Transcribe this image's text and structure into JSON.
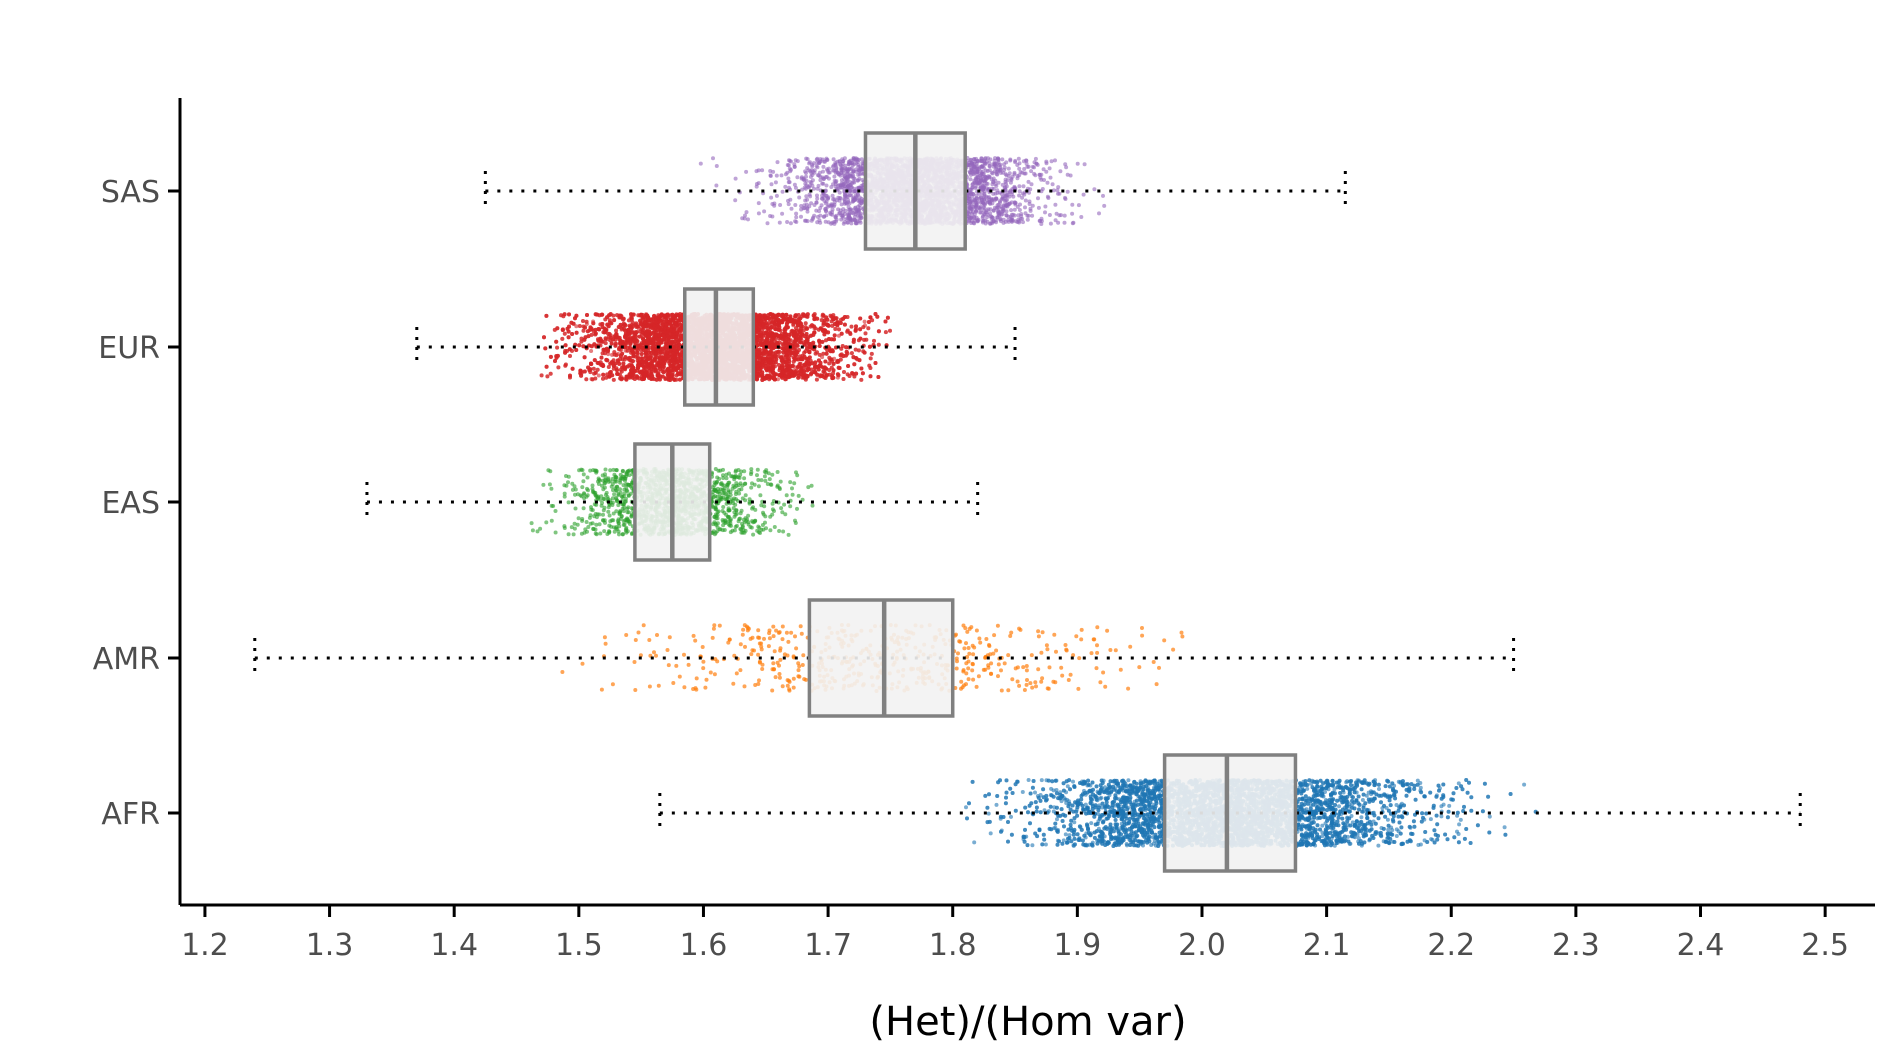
{
  "chart_data": {
    "type": "box",
    "orientation": "horizontal",
    "xlabel": "(Het)/(Hom var)",
    "ylabel": "",
    "xlim": [
      1.18,
      2.54
    ],
    "x_ticks": [
      1.2,
      1.3,
      1.4,
      1.5,
      1.6,
      1.7,
      1.8,
      1.9,
      2.0,
      2.1,
      2.2,
      2.3,
      2.4,
      2.5
    ],
    "x_tick_labels": [
      "1.2",
      "1.3",
      "1.4",
      "1.5",
      "1.6",
      "1.7",
      "1.8",
      "1.9",
      "2.0",
      "2.1",
      "2.2",
      "2.3",
      "2.4",
      "2.5"
    ],
    "categories": [
      "SAS",
      "EUR",
      "EAS",
      "AMR",
      "AFR"
    ],
    "grid": false,
    "legend": "none",
    "series": [
      {
        "category": "SAS",
        "color": "#9467bd",
        "whisker_low": 1.425,
        "q1": 1.73,
        "median": 1.77,
        "q3": 1.81,
        "whisker_high": 2.115,
        "points_min": 1.575,
        "points_max": 1.925,
        "spread": 0.048,
        "n_points": 3000,
        "point_opacity": 0.6
      },
      {
        "category": "EUR",
        "color": "#d62728",
        "whisker_low": 1.37,
        "q1": 1.585,
        "median": 1.61,
        "q3": 1.64,
        "whisker_high": 1.85,
        "points_min": 1.47,
        "points_max": 1.75,
        "spread": 0.05,
        "n_points": 9000,
        "point_opacity": 0.6
      },
      {
        "category": "EAS",
        "color": "#2ca02c",
        "whisker_low": 1.33,
        "q1": 1.545,
        "median": 1.575,
        "q3": 1.605,
        "whisker_high": 1.82,
        "points_min": 1.445,
        "points_max": 1.69,
        "spread": 0.04,
        "n_points": 1400,
        "point_opacity": 0.6
      },
      {
        "category": "AMR",
        "color": "#ff7f0e",
        "whisker_low": 1.24,
        "q1": 1.685,
        "median": 1.745,
        "q3": 1.8,
        "whisker_high": 2.25,
        "points_min": 1.48,
        "points_max": 2.06,
        "spread": 0.1,
        "n_points": 520,
        "point_opacity": 0.7
      },
      {
        "category": "AFR",
        "color": "#1f77b4",
        "whisker_low": 1.565,
        "q1": 1.97,
        "median": 2.02,
        "q3": 2.075,
        "whisker_high": 2.48,
        "points_min": 1.81,
        "points_max": 2.275,
        "spread": 0.075,
        "n_points": 6000,
        "point_opacity": 0.6
      }
    ],
    "box_fill": "#f2f2f2",
    "box_stroke": "#808080",
    "whisker_color": "#000000",
    "axis_color": "#000000"
  }
}
